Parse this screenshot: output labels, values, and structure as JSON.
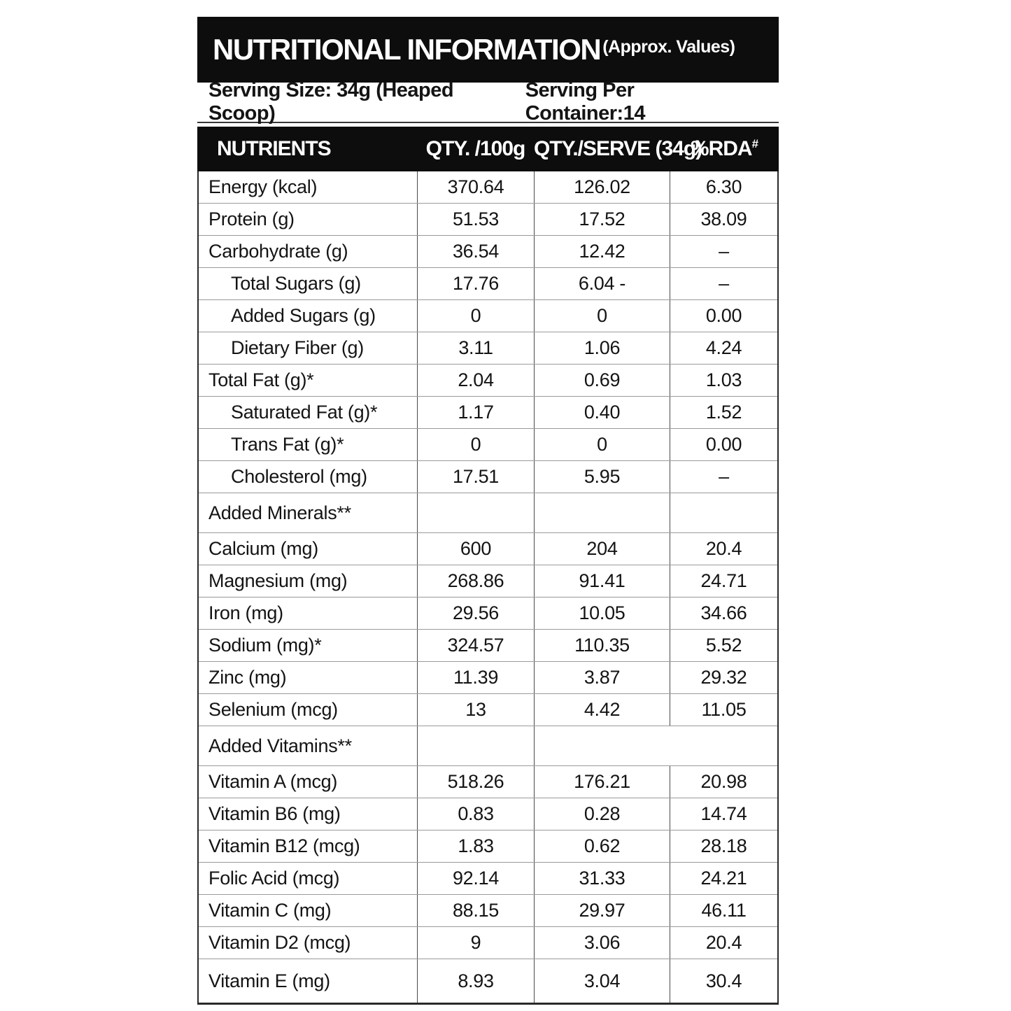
{
  "colors": {
    "bar_bg": "#0d0d0d",
    "text": "#141414",
    "divider": "#4a4a4a",
    "row_line": "#9a9a9a",
    "outer_border": "#2a2a2a"
  },
  "title_bar": {
    "title": "NUTRITIONAL INFORMATION",
    "subtitle": "(Approx. Values)"
  },
  "serving": {
    "size": "Serving Size: 34g (Heaped Scoop)",
    "per_container": "Serving Per Container:14"
  },
  "table": {
    "headers": {
      "nutrients": "NUTRIENTS",
      "per100": "QTY. /100g",
      "perServe": "QTY./SERVE (34g)",
      "rda": "%RDA",
      "rda_sup": "#"
    },
    "rows": [
      {
        "label": "Energy (kcal)",
        "indent": false,
        "section": false,
        "merge_rda": false,
        "q100": "370.64",
        "qserve": "126.02",
        "rda": "6.30"
      },
      {
        "label": "Protein (g)",
        "indent": false,
        "section": false,
        "merge_rda": false,
        "q100": "51.53",
        "qserve": "17.52",
        "rda": "38.09"
      },
      {
        "label": "Carbohydrate (g)",
        "indent": false,
        "section": false,
        "merge_rda": false,
        "q100": "36.54",
        "qserve": "12.42",
        "rda": "–"
      },
      {
        "label": "Total Sugars (g)",
        "indent": true,
        "section": false,
        "merge_rda": false,
        "q100": "17.76",
        "qserve": "6.04 -",
        "rda": "–"
      },
      {
        "label": "Added Sugars (g)",
        "indent": true,
        "section": false,
        "merge_rda": false,
        "q100": "0",
        "qserve": "0",
        "rda": "0.00"
      },
      {
        "label": "Dietary Fiber (g)",
        "indent": true,
        "section": false,
        "merge_rda": false,
        "q100": "3.11",
        "qserve": "1.06",
        "rda": "4.24"
      },
      {
        "label": "Total Fat (g)*",
        "indent": false,
        "section": false,
        "merge_rda": false,
        "q100": "2.04",
        "qserve": "0.69",
        "rda": "1.03"
      },
      {
        "label": "Saturated Fat (g)*",
        "indent": true,
        "section": false,
        "merge_rda": false,
        "q100": "1.17",
        "qserve": "0.40",
        "rda": "1.52"
      },
      {
        "label": "Trans Fat (g)*",
        "indent": true,
        "section": false,
        "merge_rda": false,
        "q100": "0",
        "qserve": "0",
        "rda": "0.00"
      },
      {
        "label": "Cholesterol (mg)",
        "indent": true,
        "section": false,
        "merge_rda": false,
        "q100": "17.51",
        "qserve": "5.95",
        "rda": "–"
      },
      {
        "label": "Added Minerals**",
        "indent": false,
        "section": true,
        "merge_rda": false,
        "q100": "",
        "qserve": "",
        "rda": ""
      },
      {
        "label": "Calcium (mg)",
        "indent": false,
        "section": false,
        "merge_rda": false,
        "q100": "600",
        "qserve": "204",
        "rda": "20.4"
      },
      {
        "label": "Magnesium (mg)",
        "indent": false,
        "section": false,
        "merge_rda": false,
        "q100": "268.86",
        "qserve": "91.41",
        "rda": "24.71"
      },
      {
        "label": "Iron (mg)",
        "indent": false,
        "section": false,
        "merge_rda": false,
        "q100": "29.56",
        "qserve": "10.05",
        "rda": "34.66"
      },
      {
        "label": "Sodium (mg)*",
        "indent": false,
        "section": false,
        "merge_rda": false,
        "q100": "324.57",
        "qserve": "110.35",
        "rda": "5.52"
      },
      {
        "label": "Zinc (mg)",
        "indent": false,
        "section": false,
        "merge_rda": false,
        "q100": "11.39",
        "qserve": "3.87",
        "rda": "29.32"
      },
      {
        "label": "Selenium (mcg)",
        "indent": false,
        "section": false,
        "merge_rda": false,
        "q100": "13",
        "qserve": "4.42",
        "rda": "11.05"
      },
      {
        "label": "Added Vitamins**",
        "indent": false,
        "section": true,
        "merge_rda": true,
        "q100": "",
        "qserve": "",
        "rda": ""
      },
      {
        "label": "Vitamin A (mcg)",
        "indent": false,
        "section": false,
        "merge_rda": false,
        "q100": "518.26",
        "qserve": "176.21",
        "rda": "20.98"
      },
      {
        "label": "Vitamin B6 (mg)",
        "indent": false,
        "section": false,
        "merge_rda": false,
        "q100": "0.83",
        "qserve": "0.28",
        "rda": "14.74"
      },
      {
        "label": "Vitamin B12 (mcg)",
        "indent": false,
        "section": false,
        "merge_rda": false,
        "q100": "1.83",
        "qserve": "0.62",
        "rda": "28.18"
      },
      {
        "label": "Folic Acid (mcg)",
        "indent": false,
        "section": false,
        "merge_rda": false,
        "q100": "92.14",
        "qserve": "31.33",
        "rda": "24.21"
      },
      {
        "label": "Vitamin C (mg)",
        "indent": false,
        "section": false,
        "merge_rda": false,
        "q100": "88.15",
        "qserve": "29.97",
        "rda": "46.11"
      },
      {
        "label": "Vitamin D2 (mcg)",
        "indent": false,
        "section": false,
        "merge_rda": false,
        "q100": "9",
        "qserve": "3.06",
        "rda": "20.4"
      },
      {
        "label": "Vitamin E (mg)",
        "indent": false,
        "section": false,
        "merge_rda": false,
        "q100": "8.93",
        "qserve": "3.04",
        "rda": "30.4"
      }
    ]
  }
}
